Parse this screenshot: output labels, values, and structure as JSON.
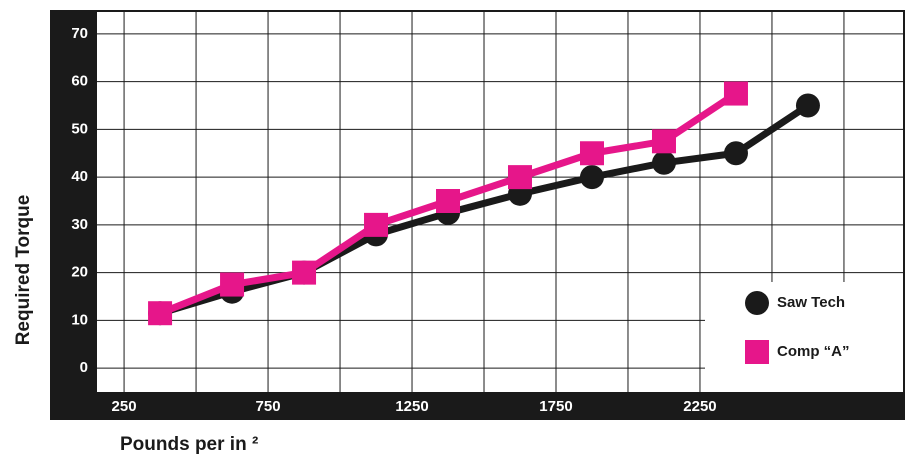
{
  "chart_data": {
    "type": "line",
    "y_label": "Required Torque",
    "x_label": "Pounds per in ²",
    "x": [
      375,
      625,
      875,
      1125,
      1375,
      1625,
      1875,
      2125,
      2375,
      2625
    ],
    "series": [
      {
        "name": "Saw Tech",
        "color": "#1a1a1a",
        "marker": "circle",
        "values": [
          11.5,
          16,
          20,
          28,
          32.5,
          36.5,
          40,
          43,
          45,
          55
        ]
      },
      {
        "name": "Comp “A”",
        "color": "#e6168a",
        "marker": "square",
        "values": [
          11.5,
          17.5,
          20,
          30,
          35,
          40,
          45,
          47.5,
          57.5,
          null
        ]
      }
    ],
    "xlim": [
      156,
      2962
    ],
    "ylim": [
      -5,
      75
    ],
    "xticks": [
      250,
      750,
      1250,
      1750,
      2250
    ],
    "xgrid": [
      250,
      500,
      750,
      1000,
      1250,
      1500,
      1750,
      2000,
      2250,
      2500,
      2750
    ],
    "yticks": [
      0,
      10,
      20,
      30,
      40,
      50,
      60,
      70
    ],
    "grid": true,
    "legend": "lower right"
  }
}
